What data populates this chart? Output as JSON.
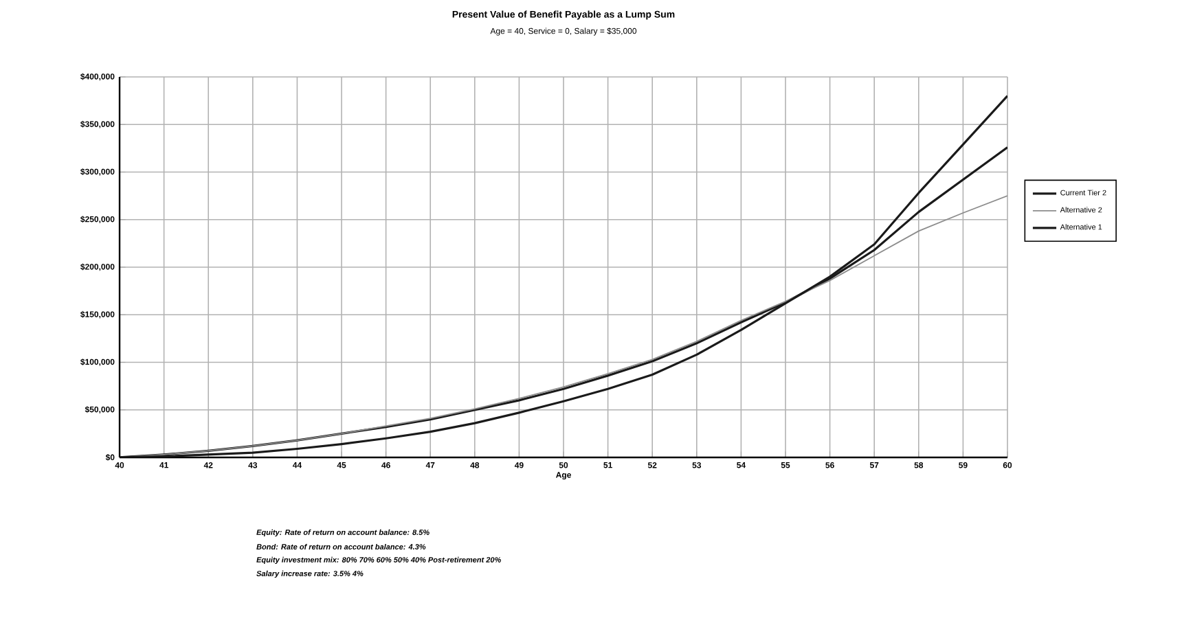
{
  "chart_data": {
    "type": "line",
    "title": "Present Value of Benefit Payable as a Lump Sum",
    "subtitle": "Age = 40, Service = 0, Salary = $35,000",
    "xlabel": "Age",
    "x": [
      40,
      41,
      42,
      43,
      44,
      45,
      46,
      47,
      48,
      49,
      50,
      51,
      52,
      53,
      54,
      55,
      56,
      57,
      58,
      59,
      60
    ],
    "series": [
      {
        "name": "Current Tier 2",
        "color": "#1a1a1a",
        "values": [
          0,
          3000,
          7000,
          12000,
          18000,
          25000,
          32000,
          40000,
          50000,
          60000,
          72000,
          86000,
          101000,
          120000,
          142000,
          163000,
          188000,
          218000,
          258000,
          292000,
          326000
        ]
      },
      {
        "name": "Alternative 2",
        "color": "#8c8c8c",
        "values": [
          0,
          3000,
          7000,
          12000,
          18000,
          25000,
          33000,
          41000,
          51000,
          62000,
          74000,
          88000,
          103000,
          122000,
          144000,
          164000,
          186000,
          212000,
          238000,
          257000,
          275000
        ]
      },
      {
        "name": "Alternative 1",
        "color": "#1a1a1a",
        "values": [
          0,
          1000,
          3000,
          5000,
          9000,
          14000,
          20000,
          27000,
          36000,
          47000,
          59000,
          72000,
          87000,
          108000,
          134000,
          162000,
          190000,
          224000,
          278000,
          329000,
          380000
        ]
      }
    ],
    "xlim": [
      40,
      60
    ],
    "ylim": [
      0,
      400000
    ],
    "xticks": [
      40,
      41,
      42,
      43,
      44,
      45,
      46,
      47,
      48,
      49,
      50,
      51,
      52,
      53,
      54,
      55,
      56,
      57,
      58,
      59,
      60
    ],
    "yticks": [
      {
        "value": 0,
        "label": "$0"
      },
      {
        "value": 50000,
        "label": "$50,000"
      },
      {
        "value": 100000,
        "label": "$100,000"
      },
      {
        "value": 150000,
        "label": "$150,000"
      },
      {
        "value": 200000,
        "label": "$200,000"
      },
      {
        "value": 250000,
        "label": "$250,000"
      },
      {
        "value": 300000,
        "label": "$300,000"
      },
      {
        "value": 350000,
        "label": "$350,000"
      },
      {
        "value": 400000,
        "label": "$400,000"
      }
    ],
    "grid": true,
    "legend": "right",
    "marker": "none",
    "line_style": "solid",
    "annotations": [
      "*Equity: Rate of return on account balance: 8.5%*",
      "*Bond: Rate of return on account balance: 4.3%*",
      "*Equity investment mix: 80% 70% 60% 50% 40% Post-retirement 20%*",
      "*Salary increase rate: 3.5% 4%*"
    ]
  }
}
